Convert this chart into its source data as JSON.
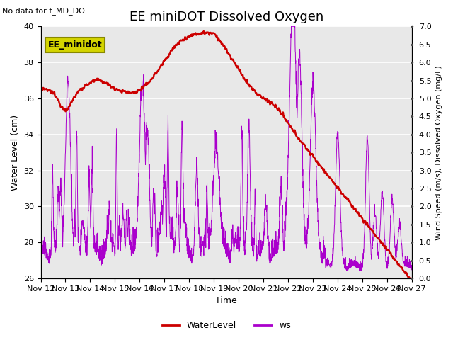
{
  "title": "EE miniDOT Dissolved Oxygen",
  "subtitle": "No data for f_MD_DO",
  "xlabel": "Time",
  "ylabel_left": "Water Level (cm)",
  "ylabel_right": "Wind Speed (m/s), Dissolved Oxygen (mg/L)",
  "legend_label_box": "EE_minidot",
  "ylim_left": [
    26,
    40
  ],
  "ylim_right": [
    0.0,
    7.0
  ],
  "yticks_left": [
    26,
    28,
    30,
    32,
    34,
    36,
    38,
    40
  ],
  "yticks_right": [
    0.0,
    0.5,
    1.0,
    1.5,
    2.0,
    2.5,
    3.0,
    3.5,
    4.0,
    4.5,
    5.0,
    5.5,
    6.0,
    6.5,
    7.0
  ],
  "xtick_labels": [
    "Nov 12",
    "Nov 13",
    "Nov 14",
    "Nov 15",
    "Nov 16",
    "Nov 17",
    "Nov 18",
    "Nov 19",
    "Nov 20",
    "Nov 21",
    "Nov 22",
    "Nov 23",
    "Nov 24",
    "Nov 25",
    "Nov 26",
    "Nov 27"
  ],
  "water_color": "#cc0000",
  "ws_color": "#aa00cc",
  "bg_color": "#e8e8e8",
  "grid_color": "#ffffff",
  "box_facecolor": "#d4d400",
  "box_edgecolor": "#888800",
  "title_fontsize": 13,
  "axis_fontsize": 9,
  "tick_fontsize": 8,
  "subtitle_fontsize": 8
}
